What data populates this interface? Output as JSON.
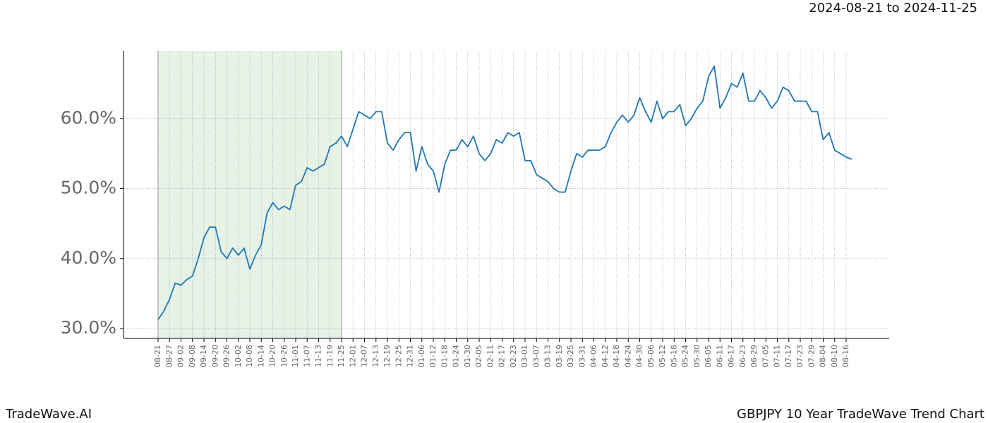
{
  "subtitle": "2024-08-21 to 2024-11-25",
  "footer_left": "TradeWave.AI",
  "footer_right": "GBPJPY 10 Year TradeWave Trend Chart",
  "chart_data": {
    "type": "line",
    "categories": [
      "08-21",
      null,
      "08-27",
      null,
      "09-02",
      null,
      "09-08",
      null,
      "09-14",
      null,
      "09-20",
      null,
      "09-26",
      null,
      "10-02",
      null,
      "10-08",
      null,
      "10-14",
      null,
      "10-20",
      null,
      "10-26",
      null,
      "11-01",
      null,
      "11-07",
      null,
      "11-13",
      null,
      "11-19",
      null,
      "11-25",
      null,
      "12-01",
      null,
      "12-07",
      null,
      "12-13",
      null,
      "12-19",
      null,
      "12-25",
      null,
      "12-31",
      null,
      "01-06",
      null,
      "01-12",
      null,
      "01-18",
      null,
      "01-24",
      null,
      "01-30",
      null,
      "02-05",
      null,
      "02-11",
      null,
      "02-17",
      null,
      "02-23",
      null,
      "03-01",
      null,
      "03-07",
      null,
      "03-13",
      null,
      "03-19",
      null,
      "03-25",
      null,
      "03-31",
      null,
      "04-06",
      null,
      "04-12",
      null,
      "04-18",
      null,
      "04-24",
      null,
      "04-30",
      null,
      "05-06",
      null,
      "05-12",
      null,
      "05-18",
      null,
      "05-24",
      null,
      "05-30",
      null,
      "06-05",
      null,
      "06-11",
      null,
      "06-17",
      null,
      "06-23",
      null,
      "06-29",
      null,
      "07-05",
      null,
      "07-11",
      null,
      "07-17",
      null,
      "07-23",
      null,
      "07-29",
      null,
      "08-04",
      null,
      "08-10",
      null,
      "08-16",
      null
    ],
    "series": [
      {
        "color": "#1f77b4",
        "values": [
          31.3,
          32.5,
          34.2,
          36.5,
          36.2,
          37.0,
          37.5,
          40.0,
          43.0,
          44.5,
          44.5,
          41.0,
          40.0,
          41.5,
          40.5,
          41.5,
          38.5,
          40.5,
          42.0,
          46.5,
          48.0,
          47.0,
          47.5,
          47.0,
          50.5,
          51.0,
          53.0,
          52.5,
          53.0,
          53.5,
          56.0,
          56.5,
          57.5,
          56.0,
          58.5,
          61.0,
          60.5,
          60.0,
          61.0,
          61.0,
          56.5,
          55.5,
          57.0,
          58.0,
          58.0,
          52.5,
          56.0,
          53.5,
          52.5,
          49.5,
          53.5,
          55.5,
          55.5,
          57.0,
          56.0,
          57.5,
          55.0,
          54.0,
          55.0,
          57.0,
          56.5,
          58.0,
          57.5,
          58.0,
          54.0,
          54.0,
          52.0,
          51.5,
          51.0,
          50.0,
          49.5,
          49.5,
          52.5,
          55.0,
          54.5,
          55.5,
          55.5,
          55.5,
          56.0,
          58.0,
          59.5,
          60.5,
          59.5,
          60.5,
          63.0,
          61.0,
          59.5,
          62.5,
          60.0,
          61.0,
          61.0,
          62.0,
          59.0,
          60.0,
          61.5,
          62.5,
          66.0,
          67.5,
          61.5,
          63.0,
          65.0,
          64.5,
          66.5,
          62.5,
          62.5,
          64.0,
          63.0,
          61.5,
          62.5,
          64.5,
          64.0,
          62.5,
          62.5,
          62.5,
          61.0,
          61.0,
          57.0,
          58.0,
          55.5,
          55.0,
          54.5,
          54.2
        ]
      }
    ],
    "ylim": [
      28.6,
      69.7
    ],
    "yticks": [
      {
        "value": 30,
        "label": "30.0%"
      },
      {
        "value": 40,
        "label": "40.0%"
      },
      {
        "value": 50,
        "label": "50.0%"
      },
      {
        "value": 60,
        "label": "60.0%"
      }
    ],
    "grid": true,
    "highlight": {
      "from": "08-21",
      "to": "11-25",
      "color": "#e6f2e6"
    }
  }
}
